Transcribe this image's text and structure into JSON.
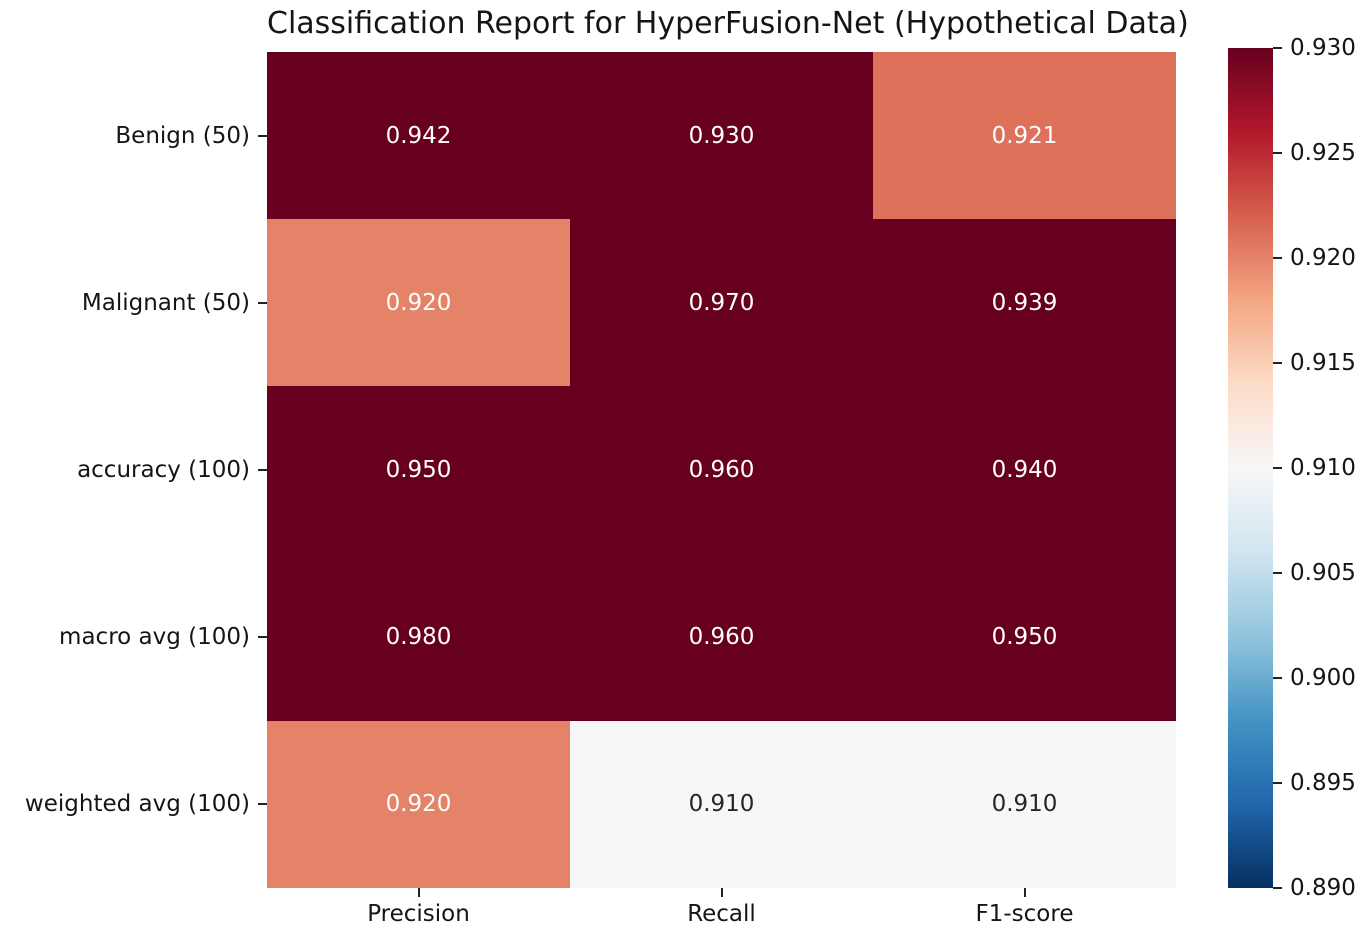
{
  "chart_data": {
    "type": "heatmap",
    "title": "Classification Report for HyperFusion-Net (Hypothetical Data)",
    "rows": [
      "Benign (50)",
      "Malignant (50)",
      "accuracy (100)",
      "macro avg (100)",
      "weighted avg (100)"
    ],
    "columns": [
      "Precision",
      "Recall",
      "F1-score"
    ],
    "values": [
      [
        0.942,
        0.93,
        0.921
      ],
      [
        0.92,
        0.97,
        0.939
      ],
      [
        0.95,
        0.96,
        0.94
      ],
      [
        0.98,
        0.96,
        0.95
      ],
      [
        0.92,
        0.91,
        0.91
      ]
    ],
    "value_decimals": 3,
    "grid": false,
    "colormap": {
      "name": "RdBu_r",
      "vmin": 0.89,
      "vmax": 0.93,
      "stops": [
        "#053061",
        "#2166ac",
        "#4393c3",
        "#92c5de",
        "#d1e5f0",
        "#f7f7f7",
        "#fddbc7",
        "#f4a582",
        "#d6604d",
        "#b2182b",
        "#67001f"
      ]
    },
    "colorbar": {
      "position": "right",
      "ticks": [
        0.89,
        0.895,
        0.9,
        0.905,
        0.91,
        0.915,
        0.92,
        0.925,
        0.93
      ]
    },
    "annotation_colors": {
      "on_dark": "#ffffff",
      "on_light": "#262626"
    },
    "axis_tick_color": "#222222",
    "background_color": "#ffffff"
  }
}
